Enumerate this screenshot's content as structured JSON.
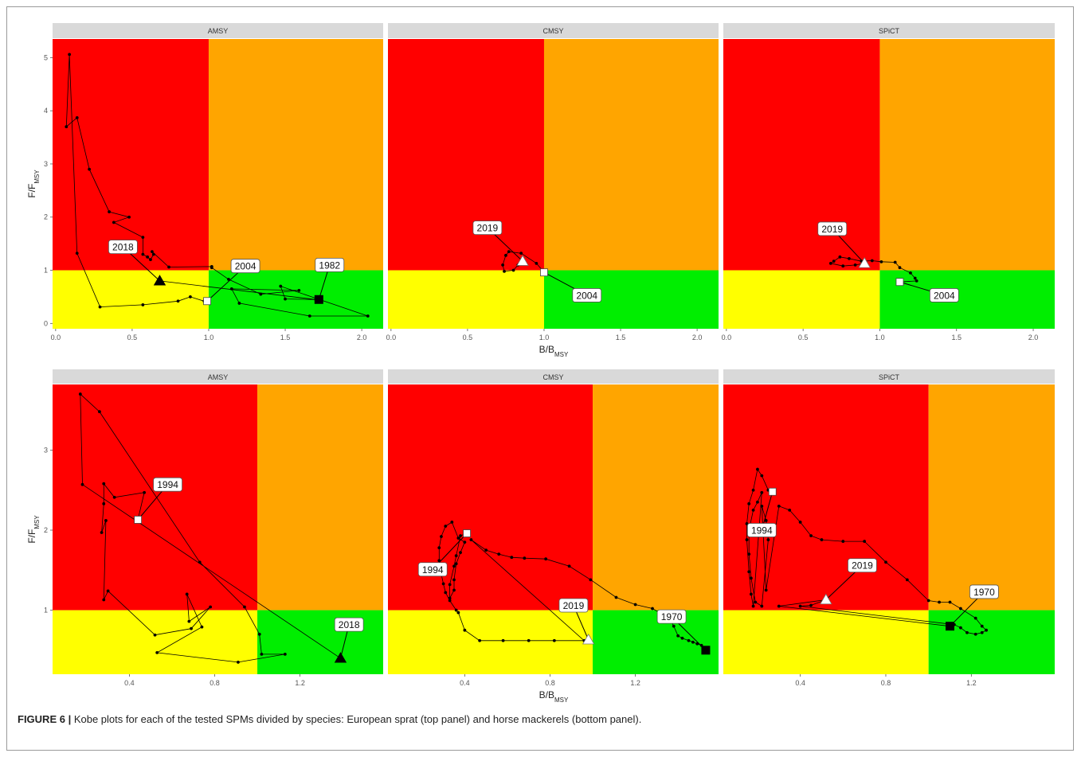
{
  "colors": {
    "red": "#ff0000",
    "orange": "#ffa500",
    "yellow": "#ffff00",
    "green": "#00ee00",
    "strip": "#d9d9d9",
    "trajectory": "#000000"
  },
  "caption": {
    "label": "FIGURE 6 |",
    "text": " Kobe plots for each of the tested SPMs divided by species: European sprat (top panel) and horse mackerels (bottom panel)."
  },
  "chart_data": [
    {
      "type": "scatter",
      "row": "top",
      "xlabel_main": "B/B",
      "xlabel_sub": "MSY",
      "ylabel_main": "F/F",
      "ylabel_sub": "MSY",
      "xlim": [
        -0.02,
        2.14
      ],
      "ylim": [
        -0.1,
        5.35
      ],
      "xticks": [
        0.0,
        0.5,
        1.0,
        1.5,
        2.0
      ],
      "xtick_labels": [
        "0.0",
        "0.5",
        "1.0",
        "1.5",
        "2.0"
      ],
      "yticks": [
        0,
        1,
        2,
        3,
        4,
        5
      ],
      "ytick_labels": [
        "0",
        "1",
        "2",
        "3",
        "4",
        "5"
      ],
      "reference": {
        "b": 1,
        "f": 1
      },
      "panels": [
        {
          "strip": "AMSY",
          "points": [
            [
              0.97,
              0.42
            ],
            [
              0.88,
              0.5
            ],
            [
              0.8,
              0.42
            ],
            [
              0.57,
              0.35
            ],
            [
              0.29,
              0.31
            ],
            [
              0.14,
              1.32
            ],
            [
              0.09,
              5.06
            ],
            [
              0.07,
              3.7
            ],
            [
              0.14,
              3.87
            ],
            [
              0.22,
              2.9
            ],
            [
              0.35,
              2.1
            ],
            [
              0.48,
              2.0
            ],
            [
              0.38,
              1.9
            ],
            [
              0.57,
              1.62
            ],
            [
              0.57,
              1.3
            ],
            [
              0.6,
              1.25
            ],
            [
              0.62,
              1.2
            ],
            [
              0.64,
              1.3
            ],
            [
              0.63,
              1.35
            ],
            [
              0.74,
              1.06
            ],
            [
              1.02,
              1.07
            ],
            [
              1.02,
              1.05
            ],
            [
              1.13,
              0.83
            ],
            [
              1.34,
              0.55
            ],
            [
              1.59,
              0.62
            ],
            [
              1.15,
              0.65
            ],
            [
              1.2,
              0.38
            ],
            [
              1.66,
              0.14
            ],
            [
              2.04,
              0.14
            ],
            [
              1.47,
              0.7
            ],
            [
              1.5,
              0.46
            ],
            [
              1.7,
              0.45
            ],
            [
              0.68,
              0.8
            ]
          ],
          "start": {
            "year": "2004",
            "b": 0.99,
            "f": 0.42,
            "label_b": 1.24,
            "label_f": 1.08
          },
          "end": {
            "year": "2018",
            "b": 0.68,
            "f": 0.8,
            "label_b": 0.44,
            "label_f": 1.44
          },
          "extra": {
            "year": "1982",
            "b": 1.72,
            "f": 0.45,
            "label_b": 1.79,
            "label_f": 1.1
          }
        },
        {
          "strip": "CMSY",
          "points": [
            [
              1.0,
              0.96
            ],
            [
              0.95,
              1.13
            ],
            [
              0.85,
              1.32
            ],
            [
              0.77,
              1.35
            ],
            [
              0.75,
              1.28
            ],
            [
              0.73,
              1.1
            ],
            [
              0.74,
              0.98
            ],
            [
              0.8,
              1.0
            ],
            [
              0.83,
              1.1
            ],
            [
              0.86,
              1.17
            ]
          ],
          "start": {
            "year": "2004",
            "b": 1.0,
            "f": 0.96,
            "label_b": 1.28,
            "label_f": 0.53
          },
          "end": {
            "year": "2019",
            "b": 0.86,
            "f": 1.17,
            "label_b": 0.63,
            "label_f": 1.8
          },
          "extra": null
        },
        {
          "strip": "SPiCT",
          "points": [
            [
              1.13,
              0.78
            ],
            [
              1.24,
              0.8
            ],
            [
              1.23,
              0.85
            ],
            [
              1.2,
              0.95
            ],
            [
              1.13,
              1.05
            ],
            [
              1.1,
              1.15
            ],
            [
              1.01,
              1.16
            ],
            [
              0.95,
              1.18
            ],
            [
              0.88,
              1.17
            ],
            [
              0.8,
              1.22
            ],
            [
              0.74,
              1.25
            ],
            [
              0.7,
              1.17
            ],
            [
              0.68,
              1.13
            ],
            [
              0.76,
              1.08
            ],
            [
              0.84,
              1.1
            ],
            [
              0.9,
              1.13
            ]
          ],
          "start": {
            "year": "2004",
            "b": 1.13,
            "f": 0.78,
            "label_b": 1.42,
            "label_f": 0.53
          },
          "end": {
            "year": "2019",
            "b": 0.9,
            "f": 1.13,
            "label_b": 0.69,
            "label_f": 1.78
          },
          "extra": null
        }
      ]
    },
    {
      "type": "scatter",
      "row": "bottom",
      "xlabel_main": "B/B",
      "xlabel_sub": "MSY",
      "ylabel_main": "F/F",
      "ylabel_sub": "MSY",
      "xlim": [
        0.04,
        1.59
      ],
      "ylim": [
        0.2,
        3.82
      ],
      "xticks": [
        0.4,
        0.8,
        1.2
      ],
      "xtick_labels": [
        "0.4",
        "0.8",
        "1.2"
      ],
      "yticks": [
        1,
        2,
        3
      ],
      "ytick_labels": [
        "1",
        "2",
        "3"
      ],
      "reference": {
        "b": 1,
        "f": 1
      },
      "panels": [
        {
          "strip": "AMSY",
          "points": [
            [
              0.44,
              2.13
            ],
            [
              0.47,
              2.47
            ],
            [
              0.33,
              2.41
            ],
            [
              0.28,
              2.58
            ],
            [
              0.28,
              2.33
            ],
            [
              0.27,
              1.97
            ],
            [
              0.29,
              2.12
            ],
            [
              0.28,
              1.13
            ],
            [
              0.3,
              1.24
            ],
            [
              0.52,
              0.69
            ],
            [
              0.69,
              0.77
            ],
            [
              0.78,
              1.04
            ],
            [
              0.68,
              0.86
            ],
            [
              0.67,
              1.2
            ],
            [
              0.74,
              0.79
            ],
            [
              0.53,
              0.47
            ],
            [
              0.91,
              0.35
            ],
            [
              1.13,
              0.45
            ],
            [
              1.02,
              0.45
            ],
            [
              1.01,
              0.7
            ],
            [
              0.94,
              1.04
            ],
            [
              0.73,
              1.6
            ],
            [
              0.26,
              3.48
            ],
            [
              0.17,
              3.7
            ],
            [
              0.18,
              2.57
            ],
            [
              1.39,
              0.4
            ]
          ],
          "start": {
            "year": "1994",
            "b": 0.44,
            "f": 2.13,
            "label_b": 0.58,
            "label_f": 2.57
          },
          "end": {
            "year": "2018",
            "b": 1.39,
            "f": 0.4,
            "label_b": 1.43,
            "label_f": 0.82
          },
          "extra": null
        },
        {
          "strip": "CMSY",
          "points": [
            [
              0.41,
              1.96
            ],
            [
              0.38,
              1.93
            ],
            [
              0.36,
              1.68
            ],
            [
              0.35,
              1.55
            ],
            [
              0.33,
              1.32
            ],
            [
              0.33,
              1.15
            ],
            [
              0.35,
              1.25
            ],
            [
              0.35,
              1.38
            ],
            [
              0.36,
              1.58
            ],
            [
              0.38,
              1.72
            ],
            [
              0.4,
              1.85
            ],
            [
              0.37,
              1.9
            ],
            [
              0.34,
              2.1
            ],
            [
              0.31,
              2.05
            ],
            [
              0.29,
              1.92
            ],
            [
              0.28,
              1.78
            ],
            [
              0.28,
              1.62
            ],
            [
              0.29,
              1.45
            ],
            [
              0.3,
              1.33
            ],
            [
              0.31,
              1.22
            ],
            [
              0.33,
              1.12
            ],
            [
              0.36,
              1.0
            ],
            [
              0.37,
              0.97
            ],
            [
              0.4,
              0.75
            ],
            [
              0.47,
              0.62
            ],
            [
              0.58,
              0.62
            ],
            [
              0.7,
              0.62
            ],
            [
              0.82,
              0.62
            ],
            [
              0.96,
              0.62
            ],
            [
              0.43,
              1.88
            ],
            [
              0.5,
              1.75
            ],
            [
              0.56,
              1.7
            ],
            [
              0.62,
              1.66
            ],
            [
              0.68,
              1.65
            ],
            [
              0.78,
              1.64
            ],
            [
              0.89,
              1.55
            ],
            [
              0.99,
              1.38
            ],
            [
              1.11,
              1.16
            ],
            [
              1.2,
              1.07
            ],
            [
              1.28,
              1.02
            ],
            [
              1.36,
              0.9
            ],
            [
              1.38,
              0.8
            ],
            [
              1.4,
              0.68
            ],
            [
              1.42,
              0.65
            ],
            [
              1.45,
              0.62
            ],
            [
              1.47,
              0.6
            ],
            [
              1.49,
              0.58
            ],
            [
              1.51,
              0.56
            ],
            [
              1.53,
              0.5
            ]
          ],
          "start": {
            "year": "1994",
            "b": 0.41,
            "f": 1.96,
            "label_b": 0.25,
            "label_f": 1.51
          },
          "end": {
            "year": "2019",
            "b": 0.98,
            "f": 0.63,
            "label_b": 0.91,
            "label_f": 1.06
          },
          "extra": {
            "year": "1970",
            "b": 1.53,
            "f": 0.5,
            "label_b": 1.37,
            "label_f": 0.92
          }
        },
        {
          "strip": "SPiCT",
          "points": [
            [
              0.27,
              2.48
            ],
            [
              0.25,
              2.5
            ],
            [
              0.22,
              2.68
            ],
            [
              0.2,
              2.76
            ],
            [
              0.18,
              2.5
            ],
            [
              0.16,
              2.33
            ],
            [
              0.15,
              2.08
            ],
            [
              0.15,
              1.88
            ],
            [
              0.16,
              1.48
            ],
            [
              0.17,
              1.2
            ],
            [
              0.18,
              1.05
            ],
            [
              0.22,
              2.47
            ],
            [
              0.2,
              2.35
            ],
            [
              0.18,
              2.25
            ],
            [
              0.16,
              2.0
            ],
            [
              0.16,
              1.7
            ],
            [
              0.17,
              1.4
            ],
            [
              0.19,
              1.1
            ],
            [
              0.22,
              1.05
            ],
            [
              0.25,
              1.88
            ],
            [
              0.24,
              2.12
            ],
            [
              0.22,
              2.3
            ],
            [
              0.24,
              1.25
            ],
            [
              0.3,
              2.3
            ],
            [
              0.35,
              2.25
            ],
            [
              0.4,
              2.1
            ],
            [
              0.45,
              1.93
            ],
            [
              0.5,
              1.88
            ],
            [
              0.6,
              1.86
            ],
            [
              0.7,
              1.86
            ],
            [
              0.8,
              1.6
            ],
            [
              0.9,
              1.38
            ],
            [
              1.0,
              1.12
            ],
            [
              1.05,
              1.1
            ],
            [
              1.1,
              1.1
            ],
            [
              1.15,
              1.02
            ],
            [
              1.22,
              0.9
            ],
            [
              1.25,
              0.8
            ],
            [
              1.27,
              0.75
            ],
            [
              1.25,
              0.72
            ],
            [
              1.22,
              0.7
            ],
            [
              1.18,
              0.72
            ],
            [
              1.15,
              0.78
            ],
            [
              1.12,
              0.82
            ],
            [
              0.4,
              1.05
            ],
            [
              0.45,
              1.06
            ],
            [
              0.52,
              1.13
            ],
            [
              0.3,
              1.05
            ],
            [
              1.1,
              0.8
            ]
          ],
          "start": {
            "year": "1994",
            "b": 0.27,
            "f": 2.48,
            "label_b": 0.22,
            "label_f": 2.0
          },
          "end": {
            "year": "2019",
            "b": 0.52,
            "f": 1.13,
            "label_b": 0.69,
            "label_f": 1.56
          },
          "extra": {
            "year": "1970",
            "b": 1.1,
            "f": 0.8,
            "label_b": 1.26,
            "label_f": 1.23
          }
        }
      ]
    }
  ]
}
